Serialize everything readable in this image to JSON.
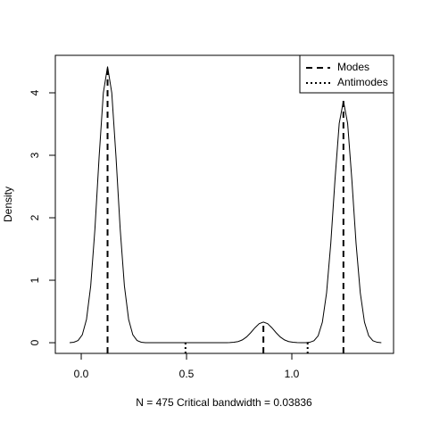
{
  "chart_data": {
    "type": "line",
    "xlabel": "N = 475  Critical bandwidth = 0.03836",
    "ylabel": "Density",
    "color": "#000000",
    "x": [
      -0.055,
      -0.035,
      -0.015,
      0.005,
      0.025,
      0.045,
      0.065,
      0.085,
      0.105,
      0.125,
      0.145,
      0.165,
      0.185,
      0.205,
      0.225,
      0.245,
      0.265,
      0.285,
      0.305,
      0.325,
      0.345,
      0.365,
      0.385,
      0.405,
      0.425,
      0.445,
      0.465,
      0.485,
      0.505,
      0.525,
      0.545,
      0.565,
      0.585,
      0.605,
      0.625,
      0.645,
      0.665,
      0.685,
      0.705,
      0.725,
      0.745,
      0.765,
      0.785,
      0.805,
      0.825,
      0.845,
      0.865,
      0.885,
      0.905,
      0.925,
      0.945,
      0.965,
      0.985,
      1.005,
      1.025,
      1.045,
      1.065,
      1.085,
      1.105,
      1.125,
      1.145,
      1.165,
      1.185,
      1.205,
      1.225,
      1.245,
      1.265,
      1.285,
      1.305,
      1.325,
      1.345,
      1.365,
      1.385,
      1.405,
      1.425
    ],
    "values": [
      0.001,
      0.008,
      0.035,
      0.126,
      0.374,
      0.91,
      1.82,
      2.98,
      4.0,
      4.42,
      4.0,
      2.98,
      1.82,
      0.91,
      0.374,
      0.126,
      0.035,
      0.008,
      0.001,
      0,
      0,
      0,
      0,
      0,
      0,
      0,
      0,
      0,
      0,
      0,
      0,
      0,
      0,
      0,
      0,
      0,
      0,
      0,
      0.002,
      0.007,
      0.018,
      0.045,
      0.092,
      0.161,
      0.24,
      0.305,
      0.33,
      0.305,
      0.24,
      0.161,
      0.092,
      0.045,
      0.018,
      0.007,
      0.002,
      0,
      0.001,
      0.007,
      0.031,
      0.111,
      0.328,
      0.8,
      1.59,
      2.61,
      3.51,
      3.87,
      3.51,
      2.61,
      1.59,
      0.8,
      0.328,
      0.111,
      0.031,
      0.007,
      0.001
    ],
    "modes": {
      "name": "Modes",
      "x": [
        0.125,
        0.865,
        1.245
      ],
      "values": [
        4.42,
        0.33,
        3.87
      ]
    },
    "antimodes": {
      "name": "Antimodes",
      "x": [
        0.495,
        1.075
      ],
      "values": [
        0,
        0
      ]
    },
    "xlim": [
      -0.123,
      1.483
    ],
    "ylim": [
      -0.171,
      4.6
    ],
    "xticks": [
      {
        "value": 0,
        "label": "0.0"
      },
      0.5,
      {
        "value": 1,
        "label": "1.0"
      }
    ],
    "yticks": [
      0,
      1,
      2,
      3,
      4
    ],
    "legend": "topright"
  }
}
